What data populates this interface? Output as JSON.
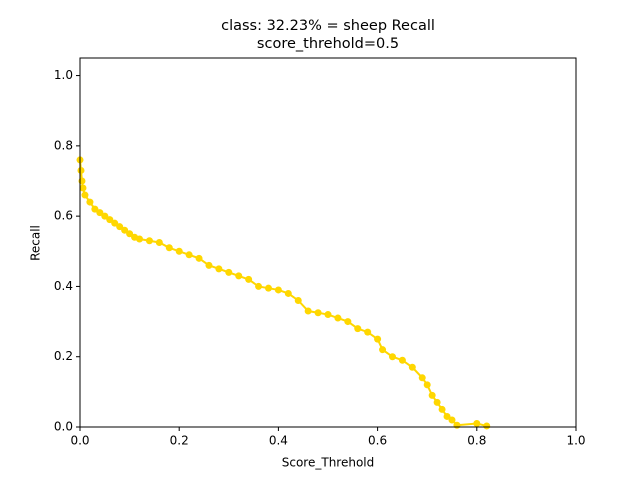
{
  "chart_data": {
    "type": "line",
    "title": "class: 32.23% = sheep Recall",
    "subtitle": "score_threhold=0.5",
    "x_label": "Score_Threhold",
    "y_label": "Recall",
    "color": "#ffd700",
    "markers": true,
    "x": [
      0.0,
      0.002,
      0.004,
      0.006,
      0.01,
      0.02,
      0.03,
      0.04,
      0.05,
      0.06,
      0.07,
      0.08,
      0.09,
      0.1,
      0.11,
      0.12,
      0.14,
      0.16,
      0.18,
      0.2,
      0.22,
      0.24,
      0.26,
      0.28,
      0.3,
      0.32,
      0.34,
      0.36,
      0.38,
      0.4,
      0.42,
      0.44,
      0.46,
      0.48,
      0.5,
      0.52,
      0.54,
      0.56,
      0.58,
      0.6,
      0.61,
      0.63,
      0.65,
      0.67,
      0.69,
      0.7,
      0.71,
      0.72,
      0.73,
      0.74,
      0.75,
      0.76,
      0.8,
      0.82
    ],
    "values": [
      0.76,
      0.73,
      0.7,
      0.68,
      0.66,
      0.64,
      0.62,
      0.61,
      0.6,
      0.59,
      0.58,
      0.57,
      0.56,
      0.55,
      0.54,
      0.535,
      0.53,
      0.525,
      0.51,
      0.5,
      0.49,
      0.48,
      0.46,
      0.45,
      0.44,
      0.43,
      0.42,
      0.4,
      0.395,
      0.39,
      0.38,
      0.36,
      0.33,
      0.325,
      0.32,
      0.31,
      0.3,
      0.28,
      0.27,
      0.25,
      0.22,
      0.2,
      0.19,
      0.17,
      0.14,
      0.12,
      0.09,
      0.07,
      0.05,
      0.03,
      0.02,
      0.005,
      0.01,
      0.003
    ],
    "xlim": [
      0,
      1
    ],
    "ylim": [
      0,
      1.05
    ],
    "xticks": [
      {
        "value": 0,
        "label": "0.0"
      },
      0.2,
      0.4,
      0.6,
      0.8,
      {
        "value": 1,
        "label": "1.0"
      }
    ],
    "yticks": [
      {
        "value": 0,
        "label": "0.0"
      },
      0.2,
      0.4,
      0.6,
      0.8,
      {
        "value": 1,
        "label": "1.0"
      }
    ]
  }
}
